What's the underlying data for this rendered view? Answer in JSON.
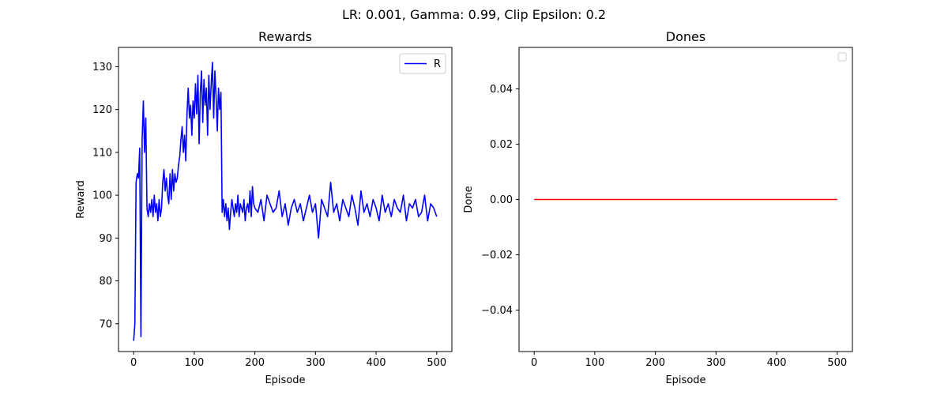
{
  "figure": {
    "suptitle": "LR: 0.001, Gamma: 0.99, Clip Epsilon: 0.2"
  },
  "colors": {
    "rewards_line": "#0000ff",
    "dones_line": "#ff0000",
    "axes": "#000000",
    "legend_border": "#cccccc"
  },
  "chart_data": [
    {
      "id": "rewards",
      "type": "line",
      "title": "Rewards",
      "xlabel": "Episode",
      "ylabel": "Reward",
      "xlim": [
        -25,
        525
      ],
      "ylim": [
        63.5,
        134.5
      ],
      "xticks": [
        0,
        100,
        200,
        300,
        400,
        500
      ],
      "yticks": [
        70,
        80,
        90,
        100,
        110,
        120,
        130
      ],
      "grid": false,
      "legend": {
        "position": "top-right",
        "entries": [
          "R"
        ]
      },
      "series": [
        {
          "name": "R",
          "color": "#0000ff",
          "x": [
            0,
            2,
            4,
            6,
            8,
            10,
            12,
            14,
            16,
            18,
            20,
            22,
            24,
            26,
            28,
            30,
            32,
            34,
            36,
            38,
            40,
            42,
            44,
            46,
            48,
            50,
            52,
            54,
            56,
            58,
            60,
            62,
            64,
            66,
            68,
            70,
            72,
            74,
            76,
            78,
            80,
            82,
            84,
            86,
            88,
            90,
            92,
            94,
            96,
            98,
            100,
            102,
            104,
            106,
            108,
            110,
            112,
            114,
            116,
            118,
            120,
            122,
            124,
            126,
            128,
            130,
            132,
            134,
            136,
            138,
            140,
            142,
            144,
            146,
            148,
            150,
            152,
            154,
            156,
            158,
            160,
            162,
            164,
            166,
            168,
            170,
            172,
            174,
            176,
            178,
            180,
            182,
            184,
            186,
            188,
            190,
            192,
            194,
            196,
            198,
            200,
            205,
            210,
            215,
            220,
            225,
            230,
            235,
            240,
            245,
            250,
            255,
            260,
            265,
            270,
            275,
            280,
            285,
            290,
            295,
            300,
            305,
            310,
            315,
            320,
            325,
            330,
            335,
            340,
            345,
            350,
            355,
            360,
            365,
            370,
            375,
            380,
            385,
            390,
            395,
            400,
            405,
            410,
            415,
            420,
            425,
            430,
            435,
            440,
            445,
            450,
            455,
            460,
            465,
            470,
            475,
            480,
            485,
            490,
            495,
            500
          ],
          "y": [
            66,
            70,
            103,
            105,
            104,
            111,
            67,
            113,
            122,
            110,
            118,
            97,
            95,
            98,
            96,
            99,
            95,
            100,
            96,
            98,
            94,
            99,
            95,
            97,
            103,
            106,
            101,
            104,
            100,
            98,
            105,
            99,
            106,
            101,
            105,
            103,
            104,
            107,
            109,
            113,
            116,
            110,
            114,
            108,
            119,
            125,
            118,
            121,
            114,
            122,
            118,
            126,
            119,
            128,
            112,
            124,
            129,
            117,
            127,
            121,
            125,
            114,
            128,
            120,
            126,
            131,
            118,
            129,
            123,
            115,
            125,
            120,
            124,
            96,
            99,
            95,
            98,
            94,
            97,
            92,
            96,
            99,
            97,
            95,
            98,
            96,
            100,
            95,
            98,
            97,
            96,
            99,
            94,
            97,
            98,
            96,
            101,
            95,
            102,
            98,
            97,
            96,
            99,
            94,
            100,
            98,
            96,
            97,
            101,
            95,
            98,
            93,
            97,
            99,
            96,
            98,
            94,
            97,
            100,
            96,
            98,
            90,
            99,
            97,
            95,
            103,
            96,
            98,
            94,
            99,
            97,
            95,
            100,
            97,
            93,
            101,
            96,
            98,
            95,
            99,
            97,
            94,
            100,
            96,
            98,
            95,
            99,
            97,
            96,
            100,
            94,
            98,
            97,
            99,
            95,
            96,
            100,
            94,
            98,
            97,
            95
          ]
        }
      ]
    },
    {
      "id": "dones",
      "type": "line",
      "title": "Dones",
      "xlabel": "Episode",
      "ylabel": "Done",
      "xlim": [
        -25,
        525
      ],
      "ylim": [
        -0.055,
        0.055
      ],
      "xticks": [
        0,
        100,
        200,
        300,
        400,
        500
      ],
      "yticks": [
        -0.04,
        -0.02,
        0.0,
        0.02,
        0.04
      ],
      "ytick_labels": [
        "−0.04",
        "−0.02",
        "0.00",
        "0.02",
        "0.04"
      ],
      "grid": false,
      "legend": {
        "position": "top-right",
        "entries": []
      },
      "series": [
        {
          "name": "Done",
          "color": "#ff0000",
          "x": [
            0,
            500
          ],
          "y": [
            0,
            0
          ]
        }
      ]
    }
  ]
}
